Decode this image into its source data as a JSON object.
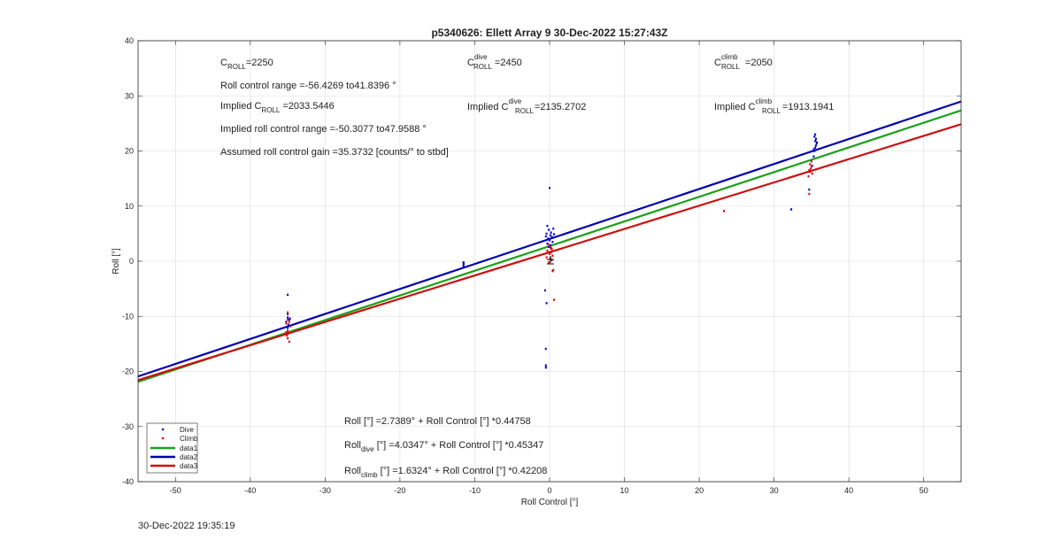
{
  "timestamp": "30-Dec-2022 19:35:19",
  "colors": {
    "dive": "#0000cc",
    "climb": "#dd0000",
    "data1": "#1aa01a",
    "data2": "#0000b0",
    "data3": "#cc1111"
  },
  "annotations": {
    "c_roll_base": "C",
    "c_roll_sub": "ROLL",
    "c_roll_val": "=2250",
    "range_text": "Roll control range =-56.4269 to41.8396 °",
    "implied_prefix": "Implied C",
    "implied_sub": "ROLL",
    "implied_val": "=2033.5446",
    "implied_range_text": "Implied roll control range =-50.3077 to47.9588 °",
    "gain_text": "Assumed roll control gain =35.3732 [counts/° to stbd]",
    "c_dive_sup": "dive",
    "c_dive_val": "=2450",
    "implied_dive_val": "=2135.2702",
    "c_climb_sup": "climb",
    "c_climb_val": "=2050",
    "implied_climb_val": "=1913.1941"
  },
  "equations": {
    "eq1": "Roll [°] =2.7389° + Roll Control [°] *0.44758",
    "eq2_base": "Roll",
    "eq2_sub": "dive",
    "eq2_rest": " [°] =4.0347° + Roll Control [°] *0.45347",
    "eq3_base": "Roll",
    "eq3_sub": "climb",
    "eq3_rest": " [°] =1.6324° + Roll Control [°] *0.42208"
  },
  "chart_data": {
    "type": "scatter",
    "title": "p5340626: Ellett Array 9 30-Dec-2022 15:27:43Z",
    "xlabel": "Roll Control [°]",
    "ylabel": "Roll [°]",
    "xlim": [
      -55,
      55
    ],
    "ylim": [
      -40,
      40
    ],
    "xticks": [
      -50,
      -40,
      -30,
      -20,
      -10,
      0,
      10,
      20,
      30,
      40,
      50
    ],
    "yticks": [
      -40,
      -30,
      -20,
      -10,
      0,
      10,
      20,
      30,
      40
    ],
    "grid": true,
    "legend": {
      "placement": "bottom-left",
      "entries": [
        "Dive",
        "Climb",
        "data1",
        "data2",
        "data3"
      ]
    },
    "lines": [
      {
        "name": "data1",
        "intercept": 2.7389,
        "slope": 0.44758,
        "color": "#1aa01a"
      },
      {
        "name": "data2",
        "intercept": 4.0347,
        "slope": 0.45347,
        "color": "#0000b0"
      },
      {
        "name": "data3",
        "intercept": 1.6324,
        "slope": 0.42208,
        "color": "#cc1111"
      }
    ],
    "series": [
      {
        "name": "Dive",
        "color": "#0000cc",
        "points": [
          [
            -35,
            -6.1
          ],
          [
            -35,
            -9.6
          ],
          [
            -35,
            -10.2
          ],
          [
            -34.8,
            -10.6
          ],
          [
            -35.2,
            -11.0
          ],
          [
            -34.9,
            -11.5
          ],
          [
            -35,
            -12.1
          ],
          [
            -34.7,
            -10.4
          ],
          [
            -11.5,
            -0.2
          ],
          [
            -11.5,
            -0.6
          ],
          [
            -11.5,
            -0.9
          ],
          [
            -11.5,
            -0.4
          ],
          [
            0,
            13.3
          ],
          [
            -0.3,
            6.4
          ],
          [
            -0.1,
            5.7
          ],
          [
            0.2,
            5.2
          ],
          [
            -0.4,
            5.0
          ],
          [
            0.1,
            4.7
          ],
          [
            0.3,
            4.4
          ],
          [
            -0.2,
            4.1
          ],
          [
            0,
            3.8
          ],
          [
            0.4,
            3.5
          ],
          [
            -0.3,
            3.2
          ],
          [
            0.1,
            2.9
          ],
          [
            -0.1,
            2.6
          ],
          [
            0.2,
            2.3
          ],
          [
            0.5,
            5.9
          ],
          [
            0.6,
            4.9
          ],
          [
            -0.5,
            4.5
          ],
          [
            -0.6,
            -5.3
          ],
          [
            -0.4,
            -7.6
          ],
          [
            -0.5,
            -15.9
          ],
          [
            -0.5,
            -18.9
          ],
          [
            -0.5,
            -19.3
          ],
          [
            32.3,
            9.4
          ],
          [
            34.7,
            13.0
          ],
          [
            35.1,
            17.3
          ],
          [
            35.3,
            19.0
          ],
          [
            35.4,
            20.0
          ],
          [
            35.5,
            20.6
          ],
          [
            35.6,
            21.0
          ],
          [
            35.7,
            21.4
          ],
          [
            35.5,
            21.8
          ],
          [
            35.6,
            22.2
          ],
          [
            35.4,
            22.6
          ],
          [
            35.5,
            23.0
          ],
          [
            35.3,
            20.3
          ],
          [
            35.7,
            21.6
          ]
        ]
      },
      {
        "name": "Climb",
        "color": "#dd0000",
        "points": [
          [
            -35,
            -9.3
          ],
          [
            -35,
            -10.6
          ],
          [
            -34.8,
            -11.0
          ],
          [
            -35.2,
            -11.3
          ],
          [
            -35,
            -12.6
          ],
          [
            -34.9,
            -13.1
          ],
          [
            -35.1,
            -13.5
          ],
          [
            -35,
            -14.0
          ],
          [
            -34.8,
            -14.6
          ],
          [
            -35.2,
            -12.9
          ],
          [
            -34.6,
            -11.8
          ],
          [
            -0.2,
            3.1
          ],
          [
            0.1,
            2.6
          ],
          [
            0.3,
            2.2
          ],
          [
            -0.3,
            1.9
          ],
          [
            0.2,
            1.6
          ],
          [
            0,
            1.3
          ],
          [
            0.4,
            1.0
          ],
          [
            -0.4,
            0.7
          ],
          [
            0.1,
            0.5
          ],
          [
            0.3,
            0.2
          ],
          [
            -0.1,
            -0.2
          ],
          [
            0.2,
            2.4
          ],
          [
            0.5,
            -1.6
          ],
          [
            0.4,
            -1.8
          ],
          [
            0.6,
            -7.0
          ],
          [
            23.3,
            9.1
          ],
          [
            34.7,
            12.2
          ],
          [
            34.6,
            15.4
          ],
          [
            34.8,
            16.2
          ],
          [
            34.9,
            16.8
          ],
          [
            35,
            17.2
          ],
          [
            34.8,
            17.6
          ],
          [
            35,
            18.1
          ],
          [
            34.7,
            16.5
          ],
          [
            35.1,
            15.9
          ]
        ]
      }
    ]
  }
}
